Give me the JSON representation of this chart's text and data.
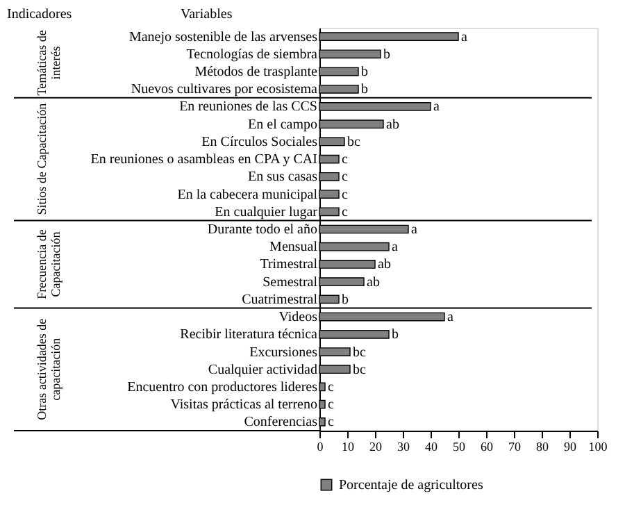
{
  "chart_data": {
    "type": "bar",
    "orientation": "horizontal",
    "categories": [
      "Manejo sostenible de las arvenses",
      "Tecnologías de siembra",
      "Métodos de trasplante",
      "Nuevos cultivares por ecosistema",
      "En reuniones de las CCS",
      "En el campo",
      "En Círculos Sociales",
      "En reuniones o asambleas en CPA y CAI",
      "En sus casas",
      "En la cabecera municipal",
      "En cualquier lugar",
      "Durante todo el año",
      "Mensual",
      "Trimestral",
      "Semestral",
      "Cuatrimestral",
      "Videos",
      "Recibir literatura técnica",
      "Excursiones",
      "Cualquier actividad",
      "Encuentro con productores lideres",
      "Visitas prácticas al terreno",
      "Conferencias"
    ],
    "series": [
      {
        "name": "Porcentaje de agricultores",
        "color": "#808080",
        "values": [
          50,
          22,
          14,
          14,
          40,
          23,
          9,
          7,
          7,
          7,
          7,
          32,
          25,
          20,
          16,
          7,
          45,
          25,
          11,
          11,
          2,
          2,
          2
        ],
        "value_labels": [
          "a",
          "b",
          "b",
          "b",
          "a",
          "ab",
          "bc",
          "c",
          "c",
          "c",
          "c",
          "a",
          "a",
          "ab",
          "ab",
          "b",
          "a",
          "b",
          "bc",
          "bc",
          "c",
          "c",
          "c"
        ]
      }
    ],
    "xlim": [
      0,
      100
    ],
    "xticks": [
      0,
      10,
      20,
      30,
      40,
      50,
      60,
      70,
      80,
      90,
      100
    ],
    "grid": false,
    "legend": "bottom",
    "annotations": [
      "Indicadores",
      "Variables",
      "Temáticas de\ninterés",
      "Sitios de Capacitación",
      "Frecuencia de\nCapacitación",
      "Otras actividades de\ncapacitación"
    ]
  }
}
